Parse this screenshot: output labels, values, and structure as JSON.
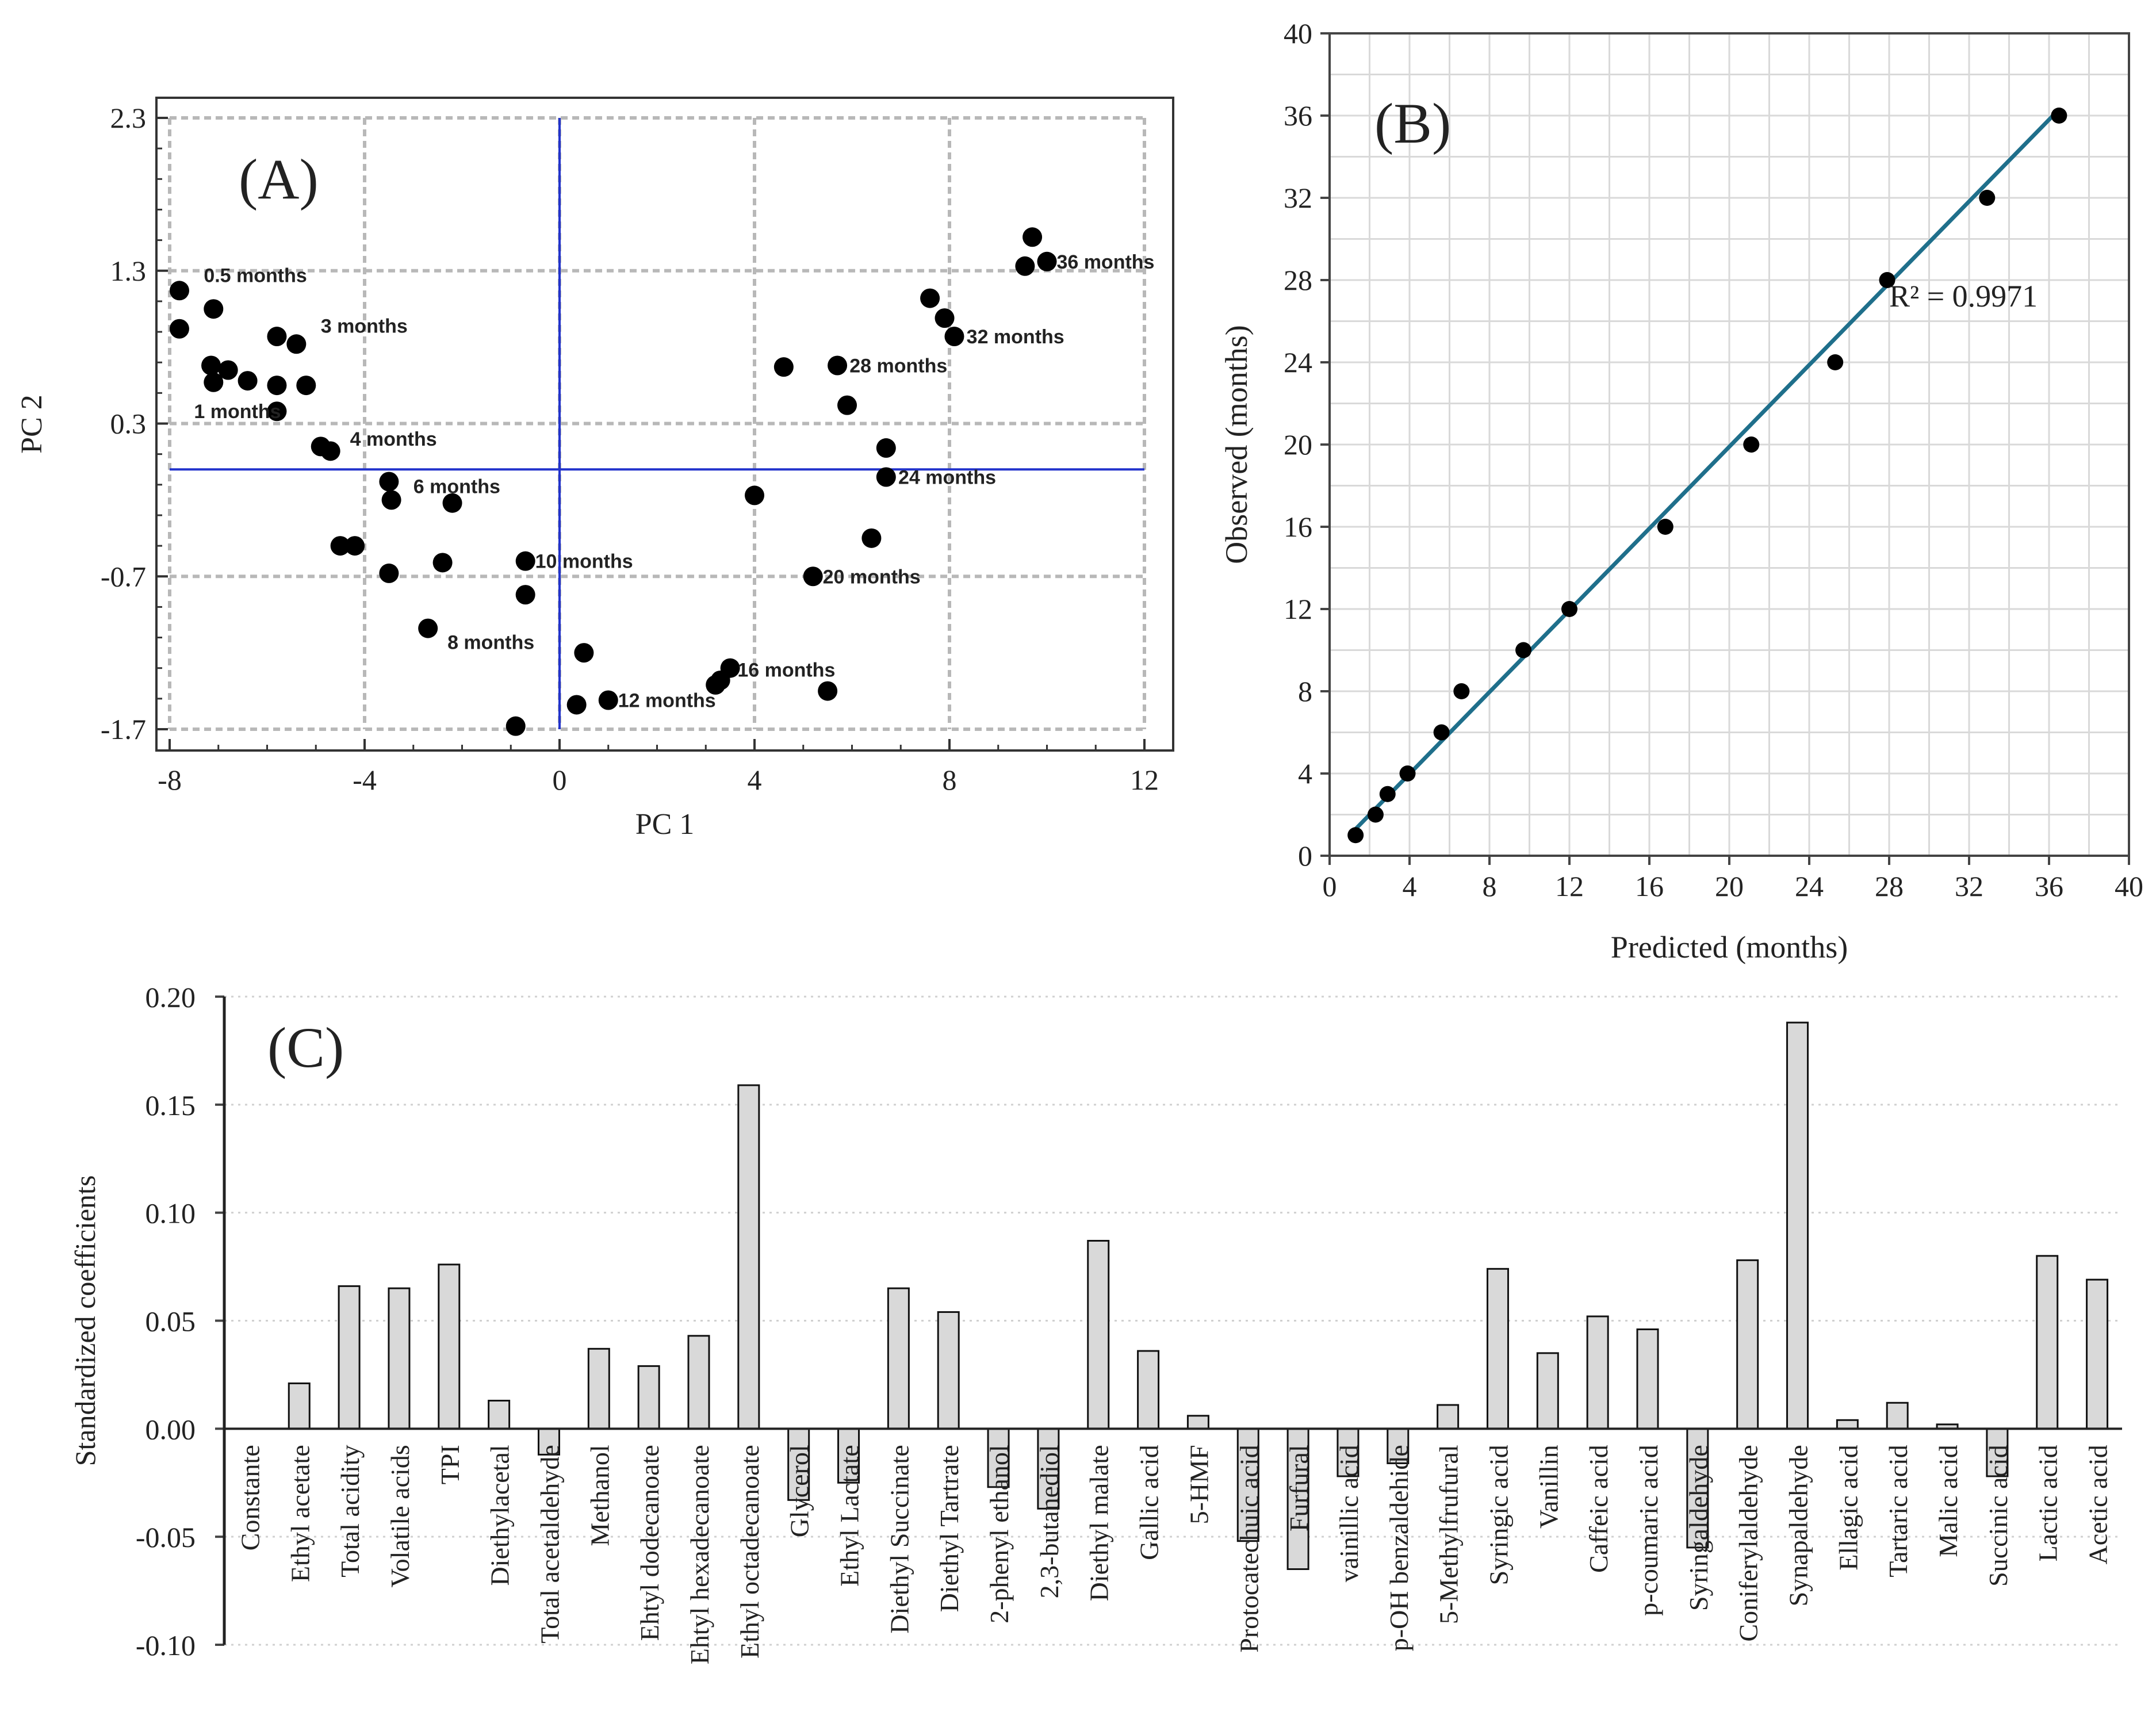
{
  "chart_data": [
    {
      "panel": "A",
      "type": "scatter",
      "panel_label": "(A)",
      "xlabel": "PC 1",
      "ylabel": "PC 2",
      "xlim": [
        -8,
        12
      ],
      "ylim": [
        -1.7,
        2.3
      ],
      "x_ticks": [
        -8,
        -4,
        0,
        4,
        8,
        12
      ],
      "x_tick_labels": [
        "-8",
        "-4",
        "0",
        "4",
        "8",
        "12"
      ],
      "y_ticks": [
        -1.7,
        -0.7,
        0.3,
        1.3,
        2.3
      ],
      "y_tick_labels": [
        "-1.7",
        "-0.7",
        "0.3",
        "1.3",
        "2.3"
      ],
      "grid": true,
      "reference_lines": {
        "x": 0,
        "y": 0.0
      },
      "points": [
        {
          "x": -7.8,
          "y": 1.17
        },
        {
          "x": -7.8,
          "y": 0.92
        },
        {
          "x": -7.1,
          "y": 1.05
        },
        {
          "x": -7.15,
          "y": 0.68
        },
        {
          "x": -7.1,
          "y": 0.57
        },
        {
          "x": -6.8,
          "y": 0.65
        },
        {
          "x": -6.4,
          "y": 0.58
        },
        {
          "x": -5.8,
          "y": 0.87
        },
        {
          "x": -5.8,
          "y": 0.55
        },
        {
          "x": -5.8,
          "y": 0.38
        },
        {
          "x": -5.4,
          "y": 0.82
        },
        {
          "x": -5.2,
          "y": 0.55
        },
        {
          "x": -4.9,
          "y": 0.15
        },
        {
          "x": -4.7,
          "y": 0.12
        },
        {
          "x": -3.5,
          "y": -0.08
        },
        {
          "x": -3.45,
          "y": -0.2
        },
        {
          "x": -2.2,
          "y": -0.22
        },
        {
          "x": -4.5,
          "y": -0.5
        },
        {
          "x": -4.2,
          "y": -0.5
        },
        {
          "x": -3.5,
          "y": -0.68
        },
        {
          "x": -2.4,
          "y": -0.61
        },
        {
          "x": -2.7,
          "y": -1.04
        },
        {
          "x": -0.7,
          "y": -0.6
        },
        {
          "x": -0.7,
          "y": -0.82
        },
        {
          "x": 0.5,
          "y": -1.2
        },
        {
          "x": 0.35,
          "y": -1.54
        },
        {
          "x": 1.0,
          "y": -1.51
        },
        {
          "x": -0.9,
          "y": -1.68
        },
        {
          "x": 3.2,
          "y": -1.41
        },
        {
          "x": 3.3,
          "y": -1.38
        },
        {
          "x": 3.5,
          "y": -1.3
        },
        {
          "x": 5.5,
          "y": -1.45
        },
        {
          "x": 4.0,
          "y": -0.17
        },
        {
          "x": 4.6,
          "y": 0.67
        },
        {
          "x": 5.7,
          "y": 0.68
        },
        {
          "x": 5.9,
          "y": 0.42
        },
        {
          "x": 6.7,
          "y": 0.14
        },
        {
          "x": 6.7,
          "y": -0.05
        },
        {
          "x": 6.4,
          "y": -0.45
        },
        {
          "x": 5.2,
          "y": -0.7
        },
        {
          "x": 7.6,
          "y": 1.12
        },
        {
          "x": 7.9,
          "y": 0.99
        },
        {
          "x": 8.1,
          "y": 0.87
        },
        {
          "x": 9.7,
          "y": 1.52
        },
        {
          "x": 9.55,
          "y": 1.33
        },
        {
          "x": 10.0,
          "y": 1.36
        }
      ],
      "annotations": [
        {
          "text": "0.5 months",
          "x": -7.3,
          "y": 1.27
        },
        {
          "text": "3 months",
          "x": -4.9,
          "y": 0.94
        },
        {
          "text": "1 months",
          "x": -7.5,
          "y": 0.38
        },
        {
          "text": "4 months",
          "x": -4.3,
          "y": 0.2
        },
        {
          "text": "6 months",
          "x": -3.0,
          "y": -0.11
        },
        {
          "text": "10 months",
          "x": -0.5,
          "y": -0.6
        },
        {
          "text": "8 months",
          "x": -2.3,
          "y": -1.13
        },
        {
          "text": "12 months",
          "x": 1.2,
          "y": -1.51
        },
        {
          "text": "16 months",
          "x": 3.65,
          "y": -1.31
        },
        {
          "text": "20 months",
          "x": 5.4,
          "y": -0.7
        },
        {
          "text": "24 months",
          "x": 6.95,
          "y": -0.05
        },
        {
          "text": "28 months",
          "x": 5.95,
          "y": 0.68
        },
        {
          "text": "32 months",
          "x": 8.35,
          "y": 0.87
        },
        {
          "text": "36 months",
          "x": 10.2,
          "y": 1.36
        }
      ]
    },
    {
      "panel": "B",
      "type": "scatter",
      "panel_label": "(B)",
      "xlabel": "Predicted (months)",
      "ylabel": "Observed (months)",
      "xlim": [
        0,
        40
      ],
      "ylim": [
        0,
        40
      ],
      "x_ticks": [
        0,
        4,
        8,
        12,
        16,
        20,
        24,
        28,
        32,
        36,
        40
      ],
      "x_tick_labels": [
        "0",
        "4",
        "8",
        "12",
        "16",
        "20",
        "24",
        "28",
        "32",
        "36",
        "40"
      ],
      "y_ticks": [
        0,
        4,
        8,
        12,
        16,
        20,
        24,
        28,
        32,
        36,
        40
      ],
      "y_tick_labels": [
        "0",
        "4",
        "8",
        "12",
        "16",
        "20",
        "24",
        "28",
        "32",
        "36",
        "40"
      ],
      "grid": true,
      "points": [
        {
          "x": 1.3,
          "y": 1
        },
        {
          "x": 2.3,
          "y": 2
        },
        {
          "x": 2.9,
          "y": 3
        },
        {
          "x": 3.9,
          "y": 4
        },
        {
          "x": 5.6,
          "y": 6
        },
        {
          "x": 6.6,
          "y": 8
        },
        {
          "x": 9.7,
          "y": 10
        },
        {
          "x": 12.0,
          "y": 12
        },
        {
          "x": 16.8,
          "y": 16
        },
        {
          "x": 21.1,
          "y": 20
        },
        {
          "x": 25.3,
          "y": 24
        },
        {
          "x": 27.9,
          "y": 28
        },
        {
          "x": 32.9,
          "y": 32
        },
        {
          "x": 36.5,
          "y": 36
        }
      ],
      "fit_line": {
        "x": [
          1.1,
          36.4
        ],
        "y": [
          1.1,
          36.2
        ]
      },
      "r2_label": "R² = 0.9971",
      "r2_position": {
        "x": 28,
        "y": 27
      }
    },
    {
      "panel": "C",
      "type": "bar",
      "panel_label": "(C)",
      "ylabel": "Standardized  coefficients",
      "ylim": [
        -0.1,
        0.2
      ],
      "y_ticks": [
        -0.1,
        -0.05,
        0,
        0.05,
        0.1,
        0.15,
        0.2
      ],
      "y_tick_labels": [
        "-0.10",
        "-0.05",
        "0.00",
        "0.05",
        "0.10",
        "0.15",
        "0.20"
      ],
      "categories": [
        "Constante",
        "Ethyl acetate",
        "Total acidity",
        "Volatile acids",
        "TPI",
        "Diethylacetal",
        "Total acetaldehyde",
        "Methanol",
        "Ehtyl dodecanoate",
        "Ehtyl hexadecanoate",
        "Ethyl octadecanoate",
        "Glycerol",
        "Ethyl Lactate",
        "Diethyl Succinate",
        "Diethyl Tartrate",
        "2-phenyl ethanol",
        "2,3-butanediol",
        "Diethyl malate",
        "Gallic acid",
        "5-HMF",
        "Protocatechuic acid",
        "Furfural",
        "vainillic acid",
        "p-OH benzaldehide",
        "5-Methylfrufural",
        "Syringic acid",
        "Vanillin",
        "Caffeic acid",
        "p-coumaric acid",
        "Syringaldehyde",
        "Coniferylaldehyde",
        "Synapaldehyde",
        "Ellagic acid",
        "Tartaric acid",
        "Malic acid",
        "Succinic acid",
        "Lactic acid",
        "Acetic acid"
      ],
      "values": [
        0,
        0.021,
        0.066,
        0.065,
        0.076,
        0.013,
        -0.012,
        0.037,
        0.029,
        0.043,
        0.159,
        -0.033,
        -0.025,
        0.065,
        0.054,
        -0.027,
        -0.037,
        0.087,
        0.036,
        0.006,
        -0.052,
        -0.065,
        -0.022,
        -0.016,
        0.011,
        0.074,
        0.035,
        0.052,
        0.046,
        -0.055,
        0.078,
        0.188,
        0.004,
        0.012,
        0.002,
        -0.022,
        0.08,
        0.069
      ],
      "bar_color": "#d9d9d9"
    }
  ]
}
